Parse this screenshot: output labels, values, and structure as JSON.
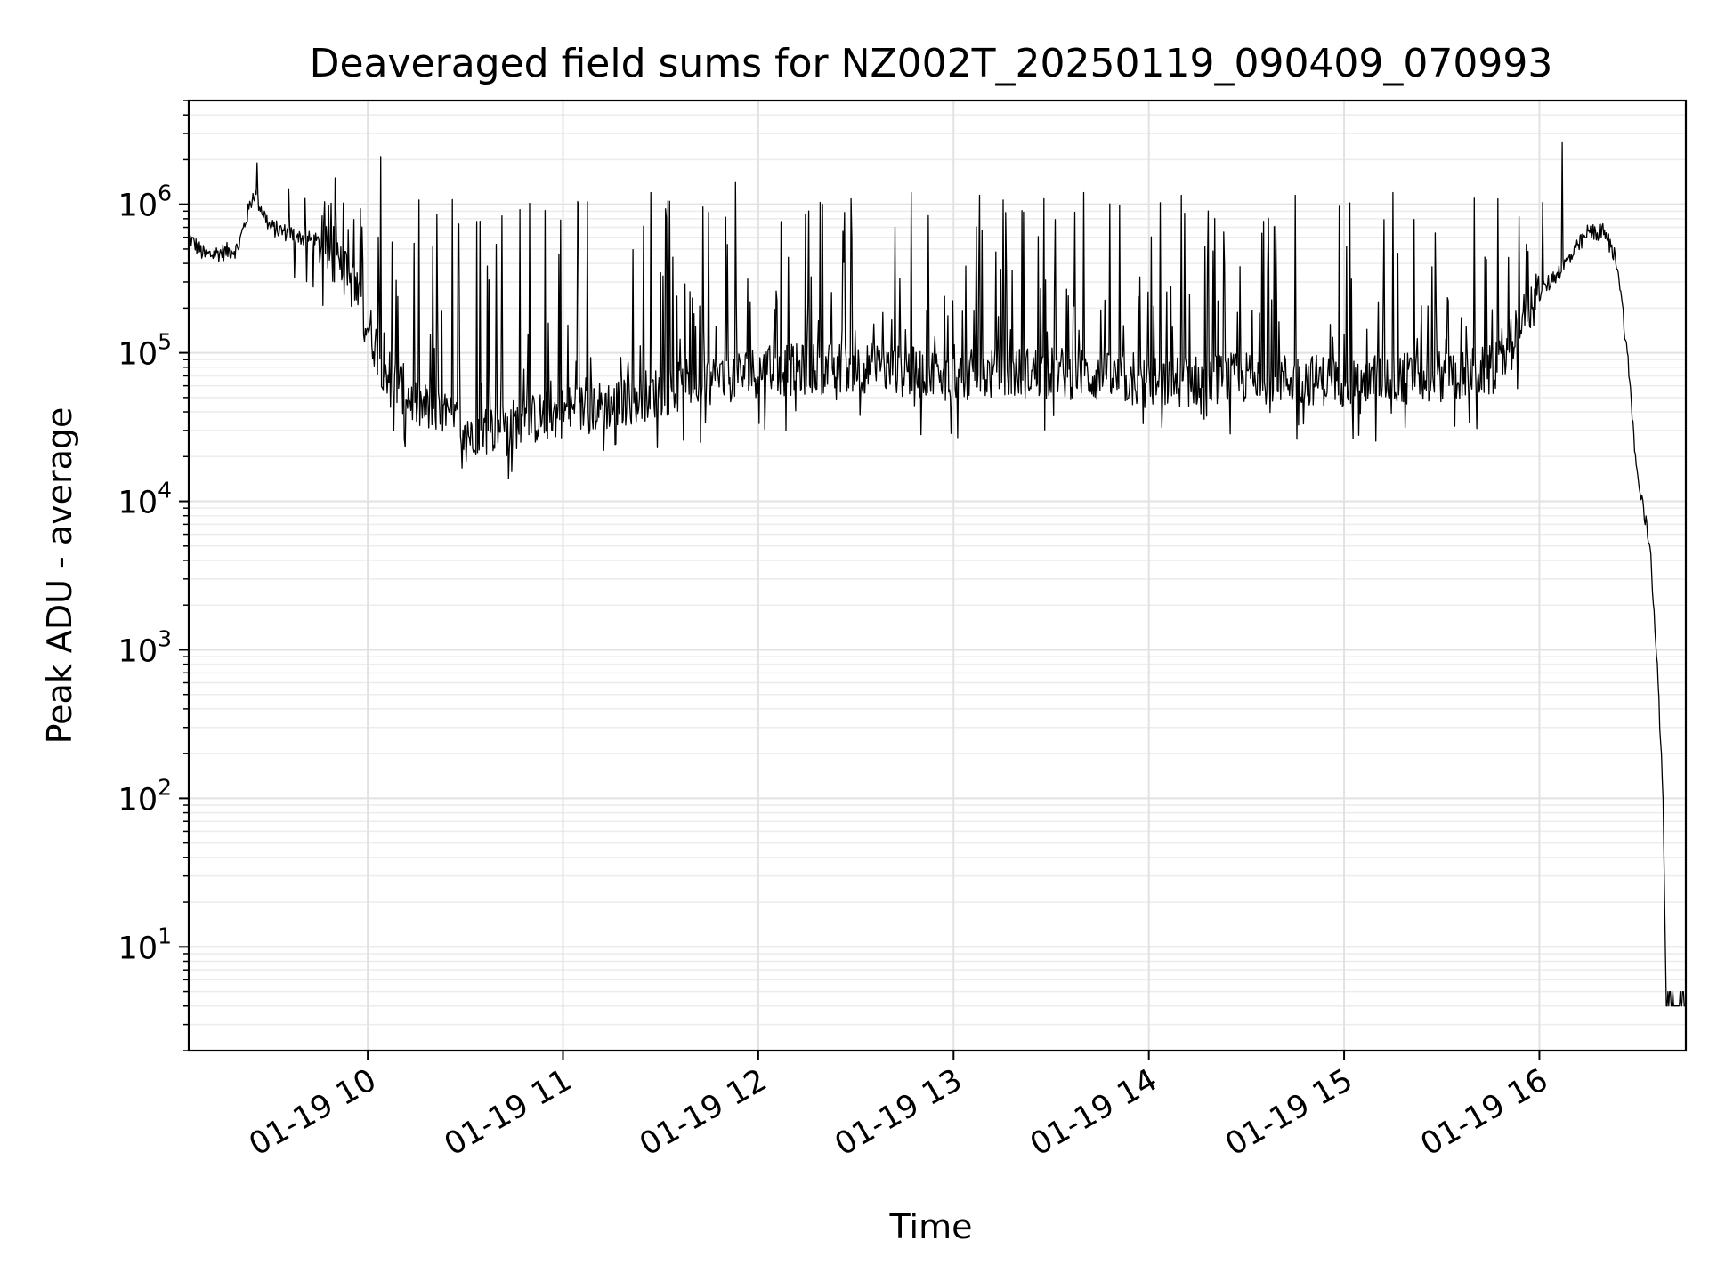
{
  "chart_data": {
    "type": "line",
    "title": "Deaveraged field sums for NZ002T_20250119_090409_070993",
    "xlabel": "Time",
    "ylabel": "Peak ADU - average",
    "y_scale": "log",
    "grid": "on (major and minor)",
    "xlim": [
      "2025-01-19 09:05",
      "2025-01-19 16:45"
    ],
    "ylim": [
      2,
      5000000
    ],
    "x_ticks": [
      "01-19 10",
      "01-19 11",
      "01-19 12",
      "01-19 13",
      "01-19 14",
      "01-19 15",
      "01-19 16"
    ],
    "y_ticks": [
      {
        "base": "10",
        "exp": "1",
        "value": 10
      },
      {
        "base": "10",
        "exp": "2",
        "value": 100
      },
      {
        "base": "10",
        "exp": "3",
        "value": 1000
      },
      {
        "base": "10",
        "exp": "4",
        "value": 10000
      },
      {
        "base": "10",
        "exp": "5",
        "value": 100000
      },
      {
        "base": "10",
        "exp": "6",
        "value": 1000000
      }
    ],
    "series": [
      {
        "color": "#000000",
        "baseline": [
          {
            "x": "2025-01-19 09:05",
            "y": 600000
          },
          {
            "x": "2025-01-19 09:10",
            "y": 450000
          },
          {
            "x": "2025-01-19 09:20",
            "y": 500000
          },
          {
            "x": "2025-01-19 09:25",
            "y": 1200000
          },
          {
            "x": "2025-01-19 09:30",
            "y": 700000
          },
          {
            "x": "2025-01-19 09:45",
            "y": 550000
          },
          {
            "x": "2025-01-19 09:55",
            "y": 300000
          },
          {
            "x": "2025-01-19 10:05",
            "y": 80000
          },
          {
            "x": "2025-01-19 10:15",
            "y": 45000
          },
          {
            "x": "2025-01-19 10:25",
            "y": 35000
          },
          {
            "x": "2025-01-19 10:35",
            "y": 30000
          },
          {
            "x": "2025-01-19 10:45",
            "y": 33000
          },
          {
            "x": "2025-01-19 11:00",
            "y": 40000
          },
          {
            "x": "2025-01-19 11:15",
            "y": 45000
          },
          {
            "x": "2025-01-19 11:30",
            "y": 55000
          },
          {
            "x": "2025-01-19 11:45",
            "y": 65000
          },
          {
            "x": "2025-01-19 12:00",
            "y": 75000
          },
          {
            "x": "2025-01-19 12:30",
            "y": 80000
          },
          {
            "x": "2025-01-19 13:00",
            "y": 70000
          },
          {
            "x": "2025-01-19 13:30",
            "y": 75000
          },
          {
            "x": "2025-01-19 14:00",
            "y": 62000
          },
          {
            "x": "2025-01-19 14:30",
            "y": 68000
          },
          {
            "x": "2025-01-19 15:00",
            "y": 65000
          },
          {
            "x": "2025-01-19 15:30",
            "y": 70000
          },
          {
            "x": "2025-01-19 15:45",
            "y": 75000
          },
          {
            "x": "2025-01-19 16:00",
            "y": 250000
          },
          {
            "x": "2025-01-19 16:10",
            "y": 450000
          },
          {
            "x": "2025-01-19 16:15",
            "y": 650000
          },
          {
            "x": "2025-01-19 16:20",
            "y": 650000
          },
          {
            "x": "2025-01-19 16:24",
            "y": 400000
          },
          {
            "x": "2025-01-19 16:27",
            "y": 100000
          },
          {
            "x": "2025-01-19 16:30",
            "y": 15000
          },
          {
            "x": "2025-01-19 16:34",
            "y": 5000
          },
          {
            "x": "2025-01-19 16:36",
            "y": 1000
          },
          {
            "x": "2025-01-19 16:38",
            "y": 100
          },
          {
            "x": "2025-01-19 16:39",
            "y": 4
          },
          {
            "x": "2025-01-19 16:45",
            "y": 4
          }
        ],
        "spikes": [
          {
            "x": "2025-01-19 09:26",
            "y": 1900000
          },
          {
            "x": "2025-01-19 10:04",
            "y": 2100000
          },
          {
            "x": "2025-01-19 11:27",
            "y": 1200000
          },
          {
            "x": "2025-01-19 11:53",
            "y": 1400000
          },
          {
            "x": "2025-01-19 12:47",
            "y": 1200000
          },
          {
            "x": "2025-01-19 13:08",
            "y": 1150000
          },
          {
            "x": "2025-01-19 13:40",
            "y": 1200000
          },
          {
            "x": "2025-01-19 14:10",
            "y": 1150000
          },
          {
            "x": "2025-01-19 14:45",
            "y": 1150000
          },
          {
            "x": "2025-01-19 15:15",
            "y": 1200000
          },
          {
            "x": "2025-01-19 15:40",
            "y": 1100000
          },
          {
            "x": "2025-01-19 16:07",
            "y": 2600000
          }
        ]
      }
    ]
  }
}
